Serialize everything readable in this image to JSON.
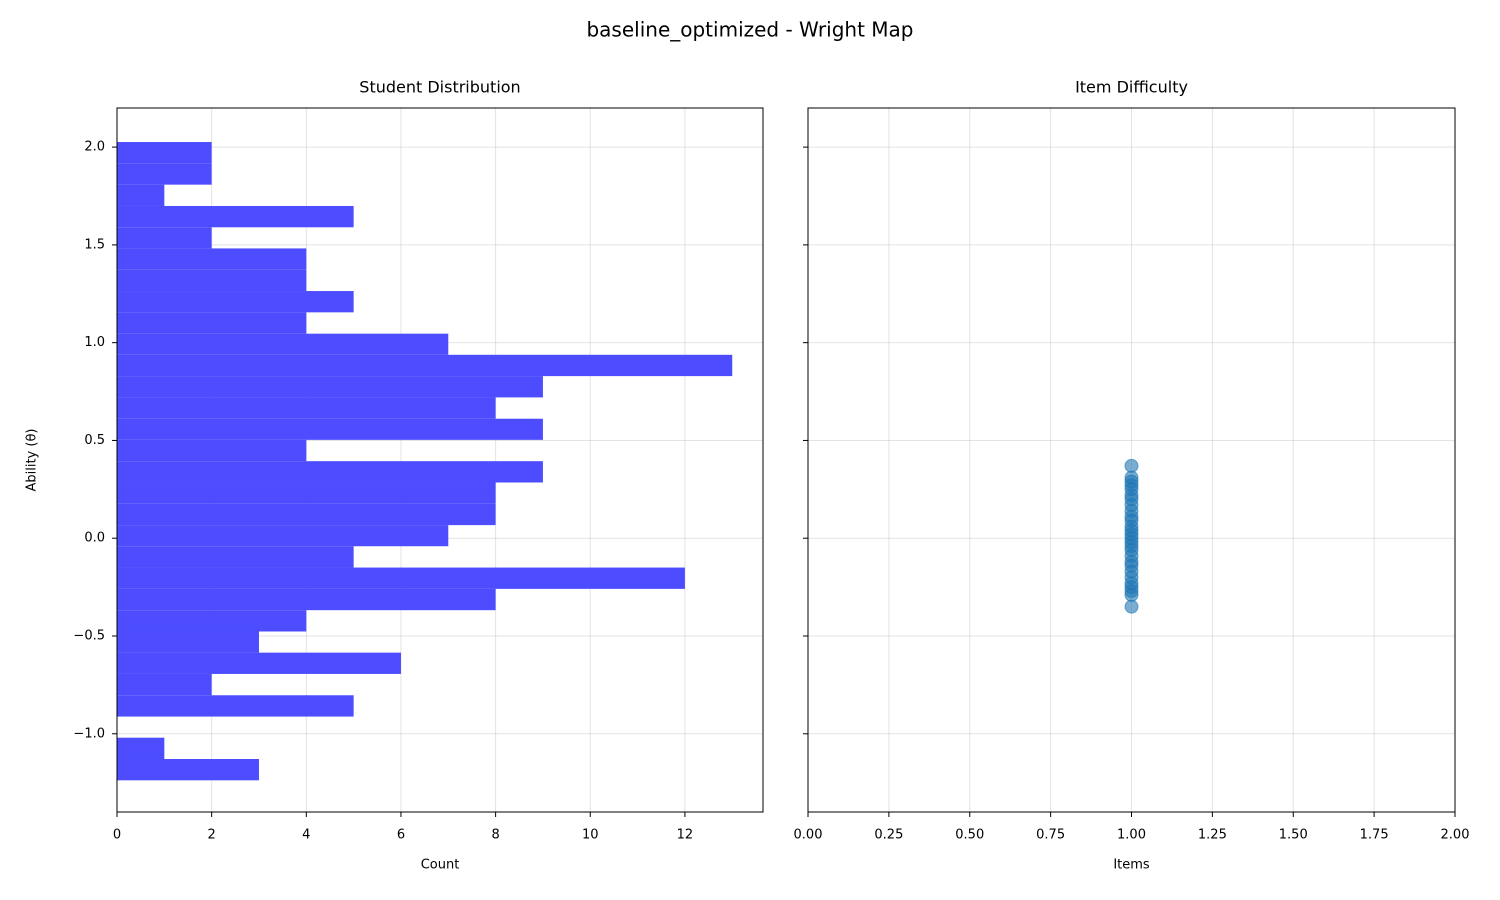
{
  "title": "baseline_optimized - Wright Map",
  "chart_data": [
    {
      "type": "histogram",
      "orientation": "horizontal",
      "title": "Student Distribution",
      "x_label": "Count",
      "y_label": "Ability (θ)",
      "color": "#4d4dff",
      "grid": true,
      "bins": [
        -1.238,
        -1.129,
        -1.02,
        -0.912,
        -0.803,
        -0.694,
        -0.585,
        -0.477,
        -0.368,
        -0.259,
        -0.15,
        -0.041,
        0.067,
        0.176,
        0.285,
        0.394,
        0.503,
        0.611,
        0.72,
        0.829,
        0.938,
        1.046,
        1.155,
        1.264,
        1.373,
        1.482,
        1.59,
        1.699,
        1.808,
        1.917,
        2.026
      ],
      "values": [
        3,
        1,
        0,
        5,
        2,
        6,
        3,
        4,
        8,
        12,
        5,
        7,
        8,
        8,
        9,
        4,
        9,
        8,
        9,
        13,
        7,
        4,
        5,
        4,
        4,
        2,
        5,
        1,
        2,
        2
      ],
      "xlim": [
        0,
        13.65
      ],
      "xticks": [
        0,
        2,
        4,
        6,
        8,
        10,
        12
      ],
      "ylim": [
        -1.4,
        2.2
      ],
      "yticks": [
        {
          "value": -1.0,
          "label": "−1.0"
        },
        {
          "value": -0.5,
          "label": "−0.5"
        },
        {
          "value": 0,
          "label": "0.0"
        },
        {
          "value": 0.5,
          "label": "0.5"
        },
        {
          "value": 1.0,
          "label": "1.0"
        },
        {
          "value": 1.5,
          "label": "1.5"
        },
        {
          "value": 2.0,
          "label": "2.0"
        }
      ]
    },
    {
      "type": "scatter",
      "title": "Item Difficulty",
      "x_label": "Items",
      "color": "#1f77b4",
      "grid": true,
      "x": [
        1,
        1,
        1,
        1,
        1,
        1,
        1,
        1,
        1,
        1,
        1,
        1,
        1,
        1,
        1,
        1,
        1,
        1,
        1,
        1,
        1,
        1,
        1,
        1,
        1,
        1,
        1,
        1
      ],
      "y": [
        -0.35,
        -0.29,
        -0.27,
        -0.25,
        -0.23,
        -0.2,
        -0.17,
        -0.14,
        -0.12,
        -0.09,
        -0.06,
        -0.04,
        -0.02,
        0,
        0.02,
        0.04,
        0.06,
        0.09,
        0.11,
        0.14,
        0.17,
        0.2,
        0.22,
        0.25,
        0.27,
        0.29,
        0.31,
        0.37
      ],
      "xlim": [
        0,
        2
      ],
      "xticks": [
        {
          "value": 0,
          "label": "0.00"
        },
        {
          "value": 0.25,
          "label": "0.25"
        },
        {
          "value": 0.5,
          "label": "0.50"
        },
        {
          "value": 0.75,
          "label": "0.75"
        },
        {
          "value": 1.0,
          "label": "1.00"
        },
        {
          "value": 1.25,
          "label": "1.25"
        },
        {
          "value": 1.5,
          "label": "1.50"
        },
        {
          "value": 1.75,
          "label": "1.75"
        },
        {
          "value": 2.0,
          "label": "2.00"
        }
      ],
      "ylim": [
        -1.4,
        2.2
      ],
      "yticks": [
        -1.0,
        -0.5,
        0,
        0.5,
        1.0,
        1.5,
        2.0
      ]
    }
  ]
}
